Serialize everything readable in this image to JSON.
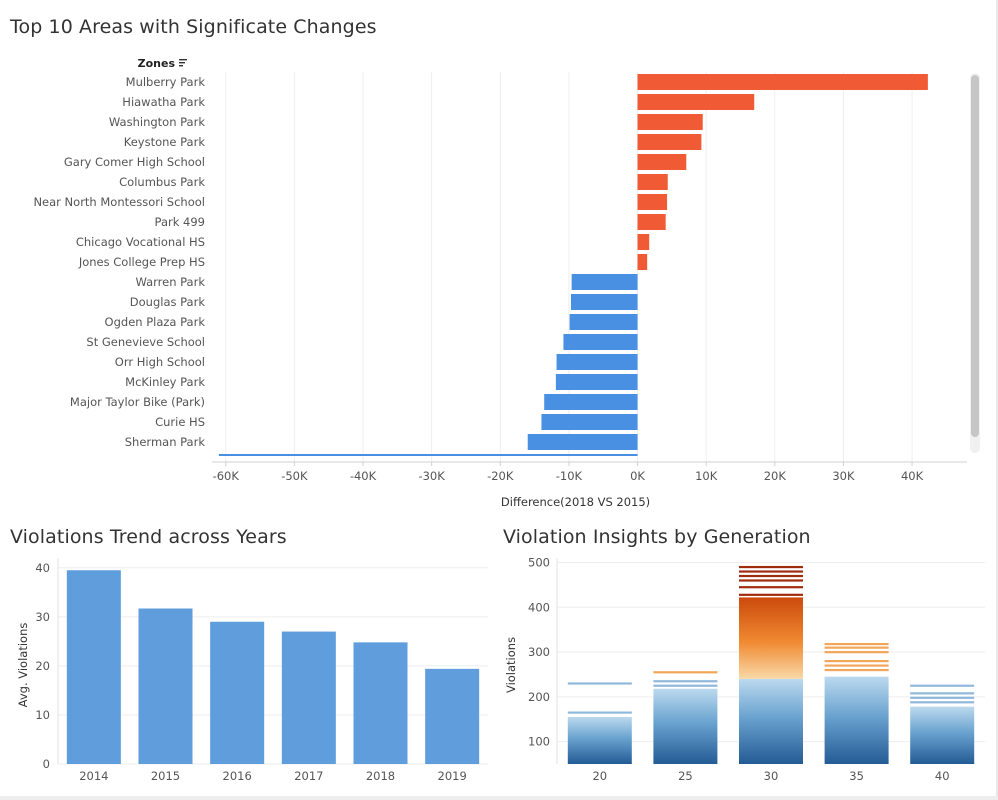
{
  "colors": {
    "positive": "#f05a35",
    "negative": "#4a90e2",
    "trend_bar": "#5f9ddd",
    "gridline": "#eeeeee",
    "axis_text": "#555555",
    "scrollbar": "#c6c6c6"
  },
  "icons": {
    "sort": "sort-descending-icon"
  },
  "chart_data": [
    {
      "type": "bar",
      "orientation": "horizontal",
      "title": "Top 10 Areas with Significate Changes",
      "row_header": "Zones",
      "xlabel": "Difference(2018 VS 2015)",
      "xlim": [
        -62000,
        48000
      ],
      "ticks": [
        -60000,
        -50000,
        -40000,
        -30000,
        -20000,
        -10000,
        0,
        10000,
        20000,
        30000,
        40000
      ],
      "tick_labels": [
        "-60K",
        "-50K",
        "-40K",
        "-30K",
        "-20K",
        "-10K",
        "0K",
        "10K",
        "20K",
        "30K",
        "40K"
      ],
      "categories": [
        "Mulberry Park",
        "Hiawatha Park",
        "Washington Park",
        "Keystone Park",
        "Gary Comer High School",
        "Columbus Park",
        "Near North Montessori School",
        "Park 499",
        "Chicago Vocational HS",
        "Jones College Prep HS",
        "Warren Park",
        "Douglas Park",
        "Ogden Plaza Park",
        "St Genevieve School",
        "Orr High School",
        "McKinley Park",
        "Major Taylor Bike (Park)",
        "Curie HS",
        "Sherman Park"
      ],
      "values": [
        42300,
        17000,
        9500,
        9300,
        7100,
        4400,
        4300,
        4100,
        1700,
        1400,
        -9600,
        -9700,
        -9900,
        -10800,
        -11800,
        -11900,
        -13600,
        -14000,
        -16000
      ],
      "partial_row_value": -61000,
      "grid": true
    },
    {
      "type": "bar",
      "title": "Violations Trend across Years",
      "xlabel": "",
      "ylabel": "Avg. Violations",
      "categories": [
        "2014",
        "2015",
        "2016",
        "2017",
        "2018",
        "2019"
      ],
      "values": [
        39.5,
        31.7,
        29.0,
        27.0,
        24.8,
        19.4
      ],
      "ylim": [
        0,
        42
      ],
      "yticks": [
        0,
        10,
        20,
        30,
        40
      ],
      "grid": true
    },
    {
      "type": "bar",
      "stacked": true,
      "title": "Violation Insights by Generation",
      "xlabel": "",
      "ylabel": "Violations",
      "categories": [
        "20",
        "25",
        "30",
        "35",
        "40"
      ],
      "values": [
        155,
        218,
        422,
        245,
        178
      ],
      "cap_lines": [
        [
          165,
          230
        ],
        [
          225,
          235,
          255
        ],
        [
          428,
          445,
          460,
          470,
          480,
          490
        ],
        [
          260,
          270,
          280,
          300,
          310,
          318
        ],
        [
          188,
          198,
          208,
          225
        ]
      ],
      "ylim": [
        50,
        510
      ],
      "yticks": [
        100,
        200,
        300,
        400,
        500
      ],
      "grid": true
    }
  ]
}
